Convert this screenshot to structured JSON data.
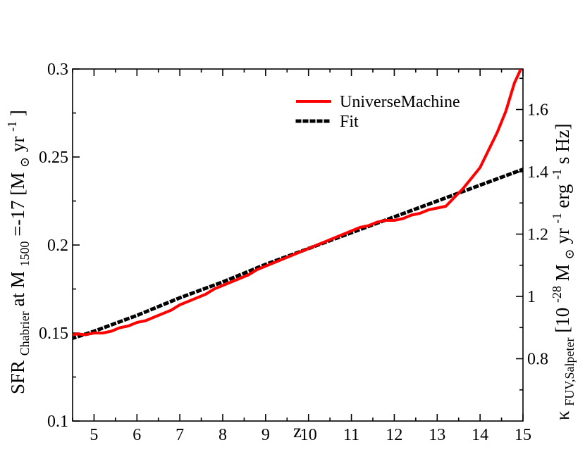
{
  "chart_data": {
    "type": "line",
    "xlabel": "z",
    "ylabel_left": "SFR_Chabrier at M_1500=-17 [M_sun yr^-1]",
    "ylabel_right": "κ_FUV,Salpeter [10^-28 M_sun yr^-1 erg^-1 s Hz]",
    "xlim": [
      4.5,
      15
    ],
    "ylim_left": [
      0.1,
      0.3
    ],
    "ylim_right": [
      0.6,
      1.73
    ],
    "x_ticks": [
      5,
      6,
      7,
      8,
      9,
      10,
      11,
      12,
      13,
      14,
      15
    ],
    "y_ticks_left": [
      0.1,
      0.15,
      0.2,
      0.25,
      0.3
    ],
    "y_ticks_right": [
      0.8,
      1.0,
      1.2,
      1.4,
      1.6
    ],
    "x_tick_labels": [
      "5",
      "6",
      "7",
      "8",
      "9",
      "10",
      "11",
      "12",
      "13",
      "14",
      "15"
    ],
    "y_tick_labels_left": [
      "0.1",
      "0.15",
      "0.2",
      "0.25",
      "0.3"
    ],
    "y_tick_labels_right": [
      "0.8",
      "1",
      "1.2",
      "1.4",
      "1.6"
    ],
    "legend": {
      "position": "top-right"
    },
    "grid": false,
    "series": [
      {
        "name": "UniverseMachine",
        "color": "#ff0000",
        "style": "solid",
        "x": [
          4.5,
          4.6,
          4.8,
          5.0,
          5.2,
          5.4,
          5.6,
          5.8,
          6.0,
          6.2,
          6.4,
          6.6,
          6.8,
          7.0,
          7.2,
          7.4,
          7.6,
          7.8,
          8.0,
          8.2,
          8.4,
          8.6,
          8.8,
          9.0,
          9.2,
          9.4,
          9.6,
          9.8,
          10.0,
          10.2,
          10.4,
          10.6,
          10.8,
          11.0,
          11.2,
          11.4,
          11.6,
          11.8,
          12.0,
          12.2,
          12.4,
          12.6,
          12.8,
          13.0,
          13.2,
          13.4,
          13.6,
          13.8,
          14.0,
          14.2,
          14.4,
          14.6,
          14.8,
          14.95
        ],
        "y": [
          0.149,
          0.1495,
          0.149,
          0.15,
          0.15,
          0.151,
          0.153,
          0.154,
          0.156,
          0.157,
          0.159,
          0.161,
          0.163,
          0.166,
          0.168,
          0.17,
          0.172,
          0.175,
          0.177,
          0.179,
          0.181,
          0.183,
          0.186,
          0.188,
          0.19,
          0.192,
          0.194,
          0.196,
          0.198,
          0.2,
          0.202,
          0.204,
          0.206,
          0.208,
          0.21,
          0.211,
          0.213,
          0.214,
          0.214,
          0.215,
          0.217,
          0.218,
          0.22,
          0.221,
          0.222,
          0.227,
          0.232,
          0.238,
          0.244,
          0.254,
          0.264,
          0.276,
          0.292,
          0.3
        ]
      },
      {
        "name": "Fit",
        "color": "#000000",
        "style": "dotted",
        "x": [
          4.5,
          5.0,
          6.0,
          7.0,
          8.0,
          9.0,
          10.0,
          11.0,
          12.0,
          13.0,
          14.0,
          15.0
        ],
        "y": [
          0.147,
          0.151,
          0.16,
          0.17,
          0.179,
          0.189,
          0.198,
          0.207,
          0.216,
          0.225,
          0.234,
          0.243
        ]
      }
    ]
  },
  "labels": {
    "xlabel": "z",
    "ylabel_left_main": "SFR",
    "ylabel_left_sub": "Chabrier",
    "ylabel_left_mid": " at M",
    "ylabel_left_sub2": "1500",
    "ylabel_left_rest": "=-17 [M",
    "ylabel_left_odot": "⊙",
    "ylabel_left_yr": " yr",
    "ylabel_left_sup": "-1",
    "ylabel_left_close": "]",
    "ylabel_right_kappa": "κ",
    "ylabel_right_sub": "FUV,Salpeter",
    "ylabel_right_open": " [10",
    "ylabel_right_sup": "-28",
    "ylabel_right_m": " M",
    "ylabel_right_odot": "⊙",
    "ylabel_right_yr": " yr",
    "ylabel_right_sup2": "-1",
    "ylabel_right_erg": " erg",
    "ylabel_right_sup3": "-1",
    "ylabel_right_close": " s Hz]",
    "legend_universemachine": "UniverseMachine",
    "legend_fit": "Fit"
  }
}
